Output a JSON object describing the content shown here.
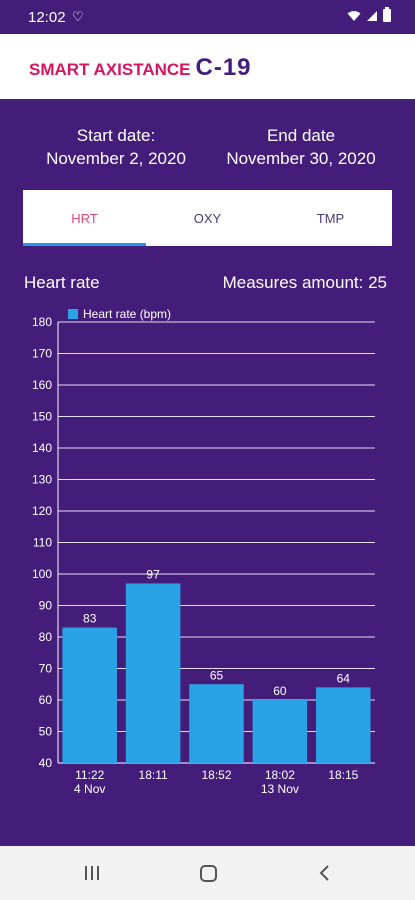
{
  "status_bar": {
    "time": "12:02"
  },
  "header": {
    "logo_text": "SMART AXISTANCE",
    "logo_suffix": "C-19"
  },
  "dates": {
    "start_label": "Start date:",
    "start_value": "November 2, 2020",
    "end_label": "End date",
    "end_value": "November 30, 2020"
  },
  "tabs": [
    {
      "label": "HRT",
      "active": true
    },
    {
      "label": "OXY",
      "active": false
    },
    {
      "label": "TMP",
      "active": false
    }
  ],
  "chart_header": {
    "title": "Heart rate",
    "measures": "Measures amount: 25"
  },
  "colors": {
    "background": "#441d7b",
    "bar": "#29a3e6",
    "active_tab": "#e0457b",
    "accent": "#d6145f"
  },
  "chart_data": {
    "type": "bar",
    "categories": [
      "11:22\n4 Nov",
      "18:11",
      "18:52",
      "18:02\n13 Nov",
      "18:15"
    ],
    "series": [
      {
        "name": "Heart rate (bpm)",
        "values": [
          83,
          97,
          65,
          60,
          64
        ]
      }
    ],
    "ylim": [
      40,
      180
    ],
    "yticks": [
      40,
      50,
      60,
      70,
      80,
      90,
      100,
      110,
      120,
      130,
      140,
      150,
      160,
      170,
      180
    ],
    "grid": true,
    "legend": "top-left"
  }
}
